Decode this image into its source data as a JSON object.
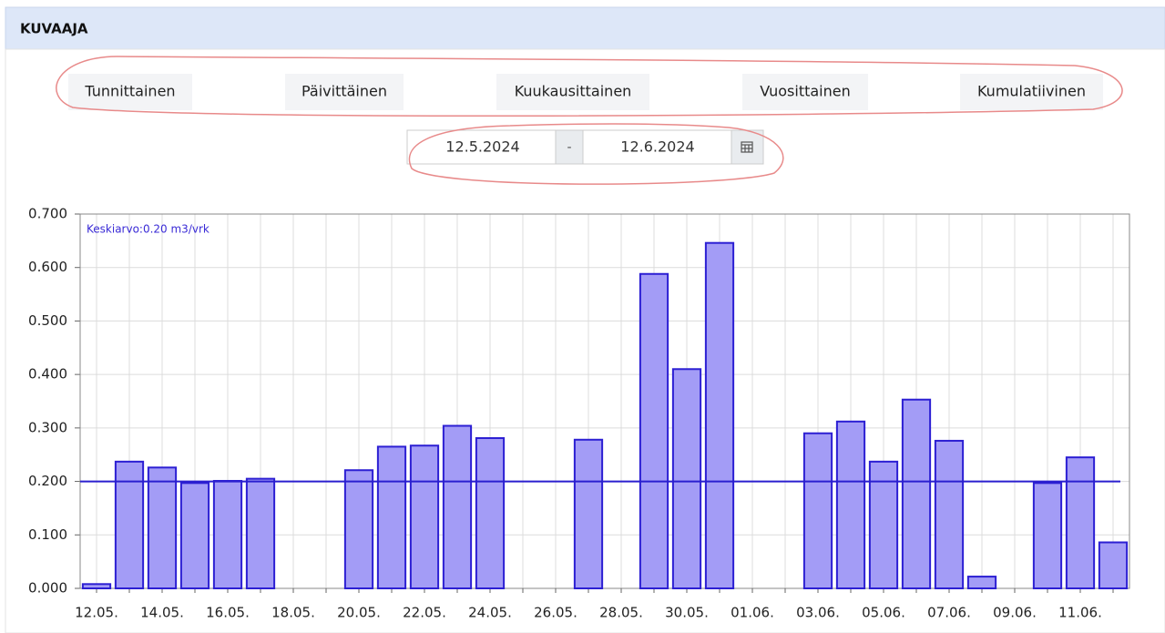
{
  "header": {
    "title": "KUVAAJA"
  },
  "tabs": [
    "Tunnittainen",
    "Päivittäinen",
    "Kuukausittainen",
    "Vuosittainen",
    "Kumulatiivinen"
  ],
  "date_range": {
    "start": "12.5.2024",
    "separator": "-",
    "end": "12.6.2024"
  },
  "chart_data": {
    "type": "bar",
    "annotation": "Keskiarvo:0.20 m3/vrk",
    "mean": 0.2,
    "categories": [
      "12.05.",
      null,
      "14.05.",
      null,
      "16.05.",
      null,
      "18.05.",
      null,
      "20.05.",
      null,
      "22.05.",
      null,
      "24.05.",
      null,
      "26.05.",
      null,
      "28.05.",
      null,
      "30.05.",
      null,
      "01.06.",
      null,
      "03.06.",
      null,
      "05.06.",
      null,
      "07.06.",
      null,
      "09.06.",
      null,
      "11.06.",
      null
    ],
    "values": [
      0.008,
      0.237,
      0.226,
      0.197,
      0.201,
      0.205,
      0,
      0,
      0.221,
      0.265,
      0.267,
      0.304,
      0.281,
      0,
      0,
      0.278,
      0,
      0.588,
      0.41,
      0.646,
      0,
      0,
      0.29,
      0.312,
      0.237,
      0.353,
      0.276,
      0.022,
      0,
      0.197,
      0.245,
      0.086
    ],
    "color": "#a39cf6",
    "edge_color": "#2c1fd3",
    "mean_color": "#2a1fcf",
    "ylim": [
      0,
      0.7
    ],
    "yticks": [
      {
        "value": 0,
        "label": "0.000"
      },
      {
        "value": 0.1,
        "label": "0.100"
      },
      {
        "value": 0.2,
        "label": "0.200"
      },
      {
        "value": 0.3,
        "label": "0.300"
      },
      {
        "value": 0.4,
        "label": "0.400"
      },
      {
        "value": 0.5,
        "label": "0.500"
      },
      {
        "value": 0.6,
        "label": "0.600"
      },
      {
        "value": 0.7,
        "label": "0.700"
      }
    ],
    "grid": true
  }
}
